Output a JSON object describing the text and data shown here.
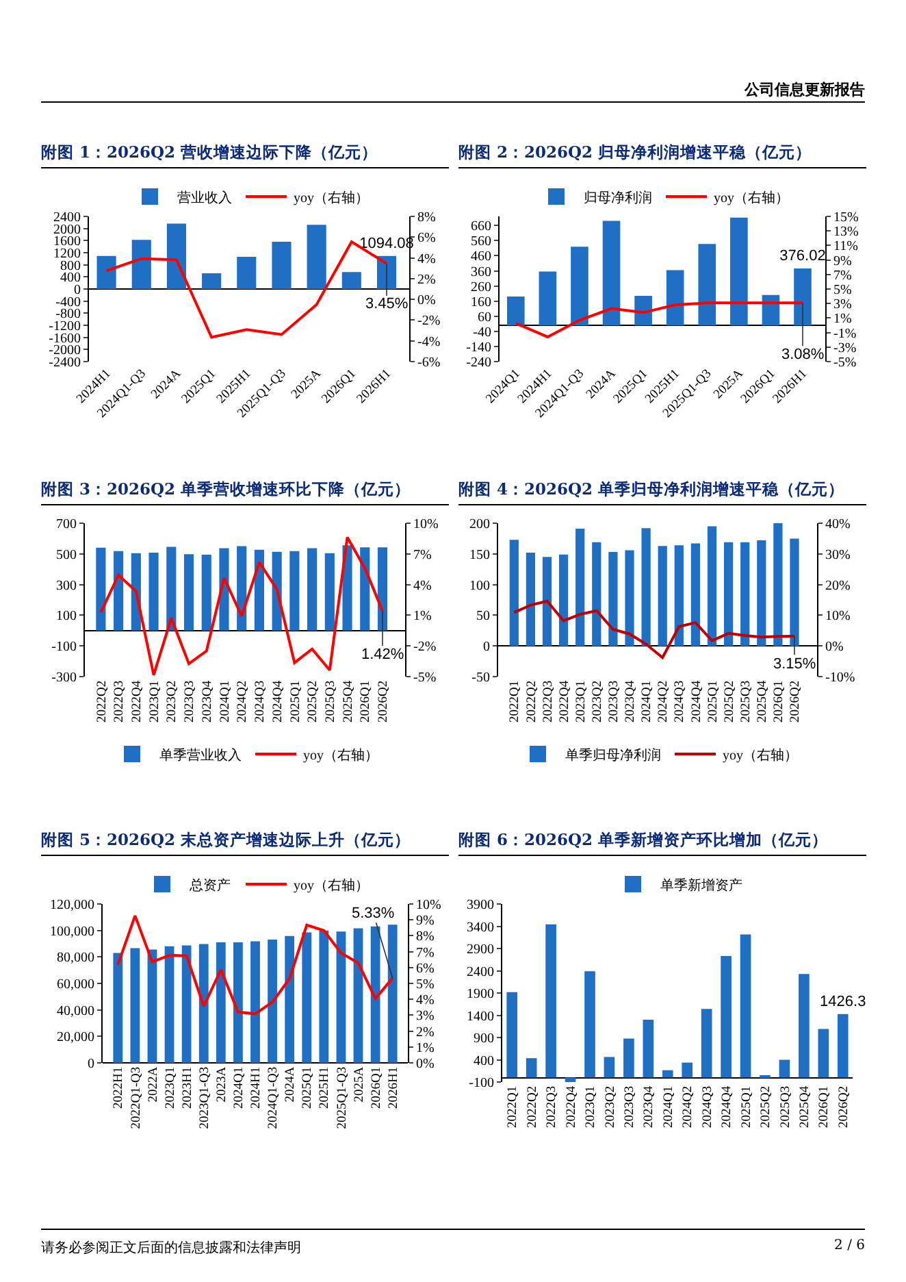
{
  "chart_data": [
    {
      "type": "bar",
      "title": "附图 1：2026Q2 营收增速边际下降（亿元）",
      "annotations": [
        "公司信息更新报告"
      ],
      "categories": [
        "2024H1",
        "2024Q1-Q3",
        "2024A",
        "2025Q1",
        "2025H1",
        "2025Q1-Q3",
        "2025A",
        "2026Q1",
        "2026H1"
      ],
      "series": [
        {
          "name": "营业收入",
          "color": "#1f6fc5",
          "values": [
            1090,
            1627,
            2160,
            520,
            1067,
            1560,
            2120,
            560,
            1094.08
          ],
          "value_labels": [
            null,
            null,
            null,
            null,
            null,
            null,
            null,
            null,
            "1094.08"
          ]
        },
        {
          "name": "yoy（右轴）",
          "type": "line",
          "axis": "y2",
          "color": "#ff0000",
          "values": [
            2.76,
            3.93,
            3.81,
            -3.66,
            -2.92,
            -3.39,
            -0.5,
            5.56,
            3.45
          ],
          "value_labels": [
            null,
            null,
            null,
            null,
            null,
            null,
            null,
            null,
            "3.45%"
          ]
        }
      ],
      "ylim": [
        -2400,
        2400
      ],
      "yticks": [
        -2400,
        -2000,
        -1600,
        -1200,
        -800,
        -400,
        0,
        400,
        800,
        1200,
        1600,
        2000,
        2400
      ],
      "y2lim": [
        -6,
        8
      ],
      "y2ticks": [
        {
          "value": -6,
          "label": "-6%"
        },
        {
          "value": -4,
          "label": "-4%"
        },
        {
          "value": -2,
          "label": "-2%"
        },
        {
          "value": 0,
          "label": "0%"
        },
        {
          "value": 2,
          "label": "2%"
        },
        {
          "value": 4,
          "label": "4%"
        },
        {
          "value": 6,
          "label": "6%"
        },
        {
          "value": 8,
          "label": "8%"
        }
      ],
      "legend": "top"
    },
    {
      "type": "bar",
      "title": "附图 2：2026Q2 归母净利润增速平稳（亿元）",
      "categories": [
        "2024Q1",
        "2024H1",
        "2024Q1-Q3",
        "2024A",
        "2025Q1",
        "2025H1",
        "2025Q1-Q3",
        "2025A",
        "2026Q1",
        "2026H1"
      ],
      "series": [
        {
          "name": "归母净利润",
          "color": "#1f6fc5",
          "values": [
            190,
            356,
            520,
            691,
            195,
            364,
            538,
            712,
            200,
            376.02
          ],
          "value_labels": [
            null,
            null,
            null,
            null,
            null,
            null,
            null,
            null,
            null,
            "376.02"
          ]
        },
        {
          "name": "yoy（右轴）",
          "type": "line",
          "axis": "y2",
          "color": "#ff0000",
          "values": [
            0.27,
            -1.6,
            0.7,
            2.3,
            1.76,
            2.8,
            3.08,
            3.08,
            3.1,
            3.08
          ],
          "value_labels": [
            null,
            null,
            null,
            null,
            null,
            null,
            null,
            null,
            null,
            "3.08%"
          ]
        }
      ],
      "ylim": [
        -240,
        720
      ],
      "yticks": [
        -240,
        -140,
        -40,
        60,
        160,
        260,
        360,
        460,
        560,
        660
      ],
      "y2lim": [
        -5,
        15
      ],
      "y2ticks": [
        {
          "value": -5,
          "label": "-5%"
        },
        {
          "value": -3,
          "label": "-3%"
        },
        {
          "value": -1,
          "label": "-1%"
        },
        {
          "value": 1,
          "label": "1%"
        },
        {
          "value": 3,
          "label": "3%"
        },
        {
          "value": 5,
          "label": "5%"
        },
        {
          "value": 7,
          "label": "7%"
        },
        {
          "value": 9,
          "label": "9%"
        },
        {
          "value": 11,
          "label": "11%"
        },
        {
          "value": 13,
          "label": "13%"
        },
        {
          "value": 15,
          "label": "15%"
        }
      ],
      "legend": "top"
    },
    {
      "type": "bar",
      "title": "附图 3：2026Q2 单季营收增速环比下降（亿元）",
      "categories": [
        "2022Q2",
        "2022Q3",
        "2022Q4",
        "2023Q1",
        "2023Q2",
        "2023Q3",
        "2023Q4",
        "2024Q1",
        "2024Q2",
        "2024Q3",
        "2024Q4",
        "2025Q1",
        "2025Q2",
        "2025Q3",
        "2025Q4",
        "2026Q1",
        "2026Q2"
      ],
      "series": [
        {
          "name": "单季营业收入",
          "color": "#1f6fc5",
          "values": [
            540,
            518,
            505,
            508,
            546,
            498,
            495,
            537,
            550,
            527,
            514,
            518,
            537,
            505,
            556,
            543,
            543
          ]
        },
        {
          "name": "yoy（右轴）",
          "type": "line",
          "axis": "y2",
          "color": "#ff0000",
          "values": [
            1.29,
            4.93,
            3.35,
            -4.84,
            0.72,
            -3.74,
            -2.49,
            4.65,
            0.91,
            6.18,
            3.55,
            -3.64,
            -2.3,
            -4.36,
            8.62,
            5.6,
            1.42
          ],
          "value_labels": [
            null,
            null,
            null,
            null,
            null,
            null,
            null,
            null,
            null,
            null,
            null,
            null,
            null,
            null,
            null,
            null,
            "1.42%"
          ]
        }
      ],
      "ylim": [
        -300,
        700
      ],
      "yticks": [
        -300,
        -100,
        100,
        300,
        500,
        700
      ],
      "y2lim": [
        -5,
        10
      ],
      "y2ticks": [
        {
          "value": -5,
          "label": "-5%"
        },
        {
          "value": -2,
          "label": "-2%"
        },
        {
          "value": 1,
          "label": "1%"
        },
        {
          "value": 4,
          "label": "4%"
        },
        {
          "value": 7,
          "label": "7%"
        },
        {
          "value": 10,
          "label": "10%"
        }
      ],
      "legend": "bottom"
    },
    {
      "type": "bar",
      "title": "附图 4：2026Q2 单季归母净利润增速平稳（亿元）",
      "categories": [
        "2022Q1",
        "2022Q2",
        "2022Q3",
        "2022Q4",
        "2023Q1",
        "2023Q2",
        "2023Q3",
        "2023Q4",
        "2024Q1",
        "2024Q2",
        "2024Q3",
        "2024Q4",
        "2025Q1",
        "2025Q2",
        "2025Q3",
        "2025Q4",
        "2026Q1",
        "2026Q2"
      ],
      "series": [
        {
          "name": "单季归母净利润",
          "color": "#1f6fc5",
          "values": [
            173,
            152,
            145,
            149,
            191,
            169,
            153,
            156,
            192,
            163,
            164,
            167,
            195,
            169,
            169,
            172,
            200,
            175
          ]
        },
        {
          "name": "yoy（右轴）",
          "type": "line",
          "axis": "y2",
          "color": "#c00000",
          "values": [
            10.9,
            13.3,
            14.6,
            8.2,
            10.3,
            11.5,
            5.4,
            3.9,
            0.6,
            -3.8,
            6.3,
            7.6,
            1.7,
            4.1,
            3.4,
            2.9,
            3.1,
            3.15
          ],
          "value_labels": [
            null,
            null,
            null,
            null,
            null,
            null,
            null,
            null,
            null,
            null,
            null,
            null,
            null,
            null,
            null,
            null,
            null,
            "3.15%"
          ]
        }
      ],
      "ylim": [
        -50,
        200
      ],
      "yticks": [
        -50,
        0,
        50,
        100,
        150,
        200
      ],
      "y2lim": [
        -10,
        40
      ],
      "y2ticks": [
        {
          "value": -10,
          "label": "-10%"
        },
        {
          "value": 0,
          "label": "0%"
        },
        {
          "value": 10,
          "label": "10%"
        },
        {
          "value": 20,
          "label": "20%"
        },
        {
          "value": 30,
          "label": "30%"
        },
        {
          "value": 40,
          "label": "40%"
        }
      ],
      "legend": "bottom"
    },
    {
      "type": "bar",
      "title": "附图 5：2026Q2 末总资产增速边际上升（亿元）",
      "categories": [
        "2022H1",
        "2022Q1-Q3",
        "2022A",
        "2023Q1",
        "2023H1",
        "2023Q1-Q3",
        "2023A",
        "2024Q1",
        "2024H1",
        "2024Q1-Q3",
        "2024A",
        "2025Q1",
        "2025H1",
        "2025Q1-Q3",
        "2025A",
        "2026Q1",
        "2026H1"
      ],
      "series": [
        {
          "name": "总资产",
          "color": "#1f6fc5",
          "values": [
            83000,
            86700,
            85650,
            88030,
            88700,
            89700,
            91100,
            91100,
            91800,
            93100,
            95800,
            98600,
            99900,
            99200,
            101600,
            103000,
            104300
          ]
        },
        {
          "name": "yoy（右轴）",
          "type": "line",
          "axis": "y2",
          "color": "#ff0000",
          "values": [
            6.18,
            9.26,
            6.35,
            6.77,
            6.74,
            3.57,
            5.86,
            3.2,
            3.09,
            3.82,
            5.3,
            8.67,
            8.33,
            6.91,
            6.29,
            4.05,
            5.33
          ],
          "value_labels": [
            null,
            null,
            null,
            null,
            null,
            null,
            null,
            null,
            null,
            null,
            null,
            null,
            null,
            null,
            null,
            null,
            "5.33%"
          ]
        }
      ],
      "ylim": [
        0,
        120000
      ],
      "yticks": [
        0,
        {
          "value": 20000,
          "label": "20,000"
        },
        {
          "value": 40000,
          "label": "40,000"
        },
        {
          "value": 60000,
          "label": "60,000"
        },
        {
          "value": 80000,
          "label": "80,000"
        },
        {
          "value": 100000,
          "label": "100,000"
        },
        {
          "value": 120000,
          "label": "120,000"
        }
      ],
      "y2lim": [
        0,
        10
      ],
      "y2ticks": [
        {
          "value": 0,
          "label": "0%"
        },
        {
          "value": 1,
          "label": "1%"
        },
        {
          "value": 2,
          "label": "2%"
        },
        {
          "value": 3,
          "label": "3%"
        },
        {
          "value": 4,
          "label": "4%"
        },
        {
          "value": 5,
          "label": "5%"
        },
        {
          "value": 6,
          "label": "6%"
        },
        {
          "value": 7,
          "label": "7%"
        },
        {
          "value": 8,
          "label": "8%"
        },
        {
          "value": 9,
          "label": "9%"
        },
        {
          "value": 10,
          "label": "10%"
        }
      ],
      "legend": "top"
    },
    {
      "type": "bar",
      "title": "附图 6：2026Q2 单季新增资产环比增加（亿元）",
      "annotations": [
        "请务必参阅正文后面的信息披露和法律声明",
        "2 / 6"
      ],
      "categories": [
        "2022Q1",
        "2022Q2",
        "2022Q3",
        "2022Q4",
        "2023Q1",
        "2023Q2",
        "2023Q3",
        "2023Q4",
        "2024Q1",
        "2024Q2",
        "2024Q3",
        "2024Q4",
        "2025Q1",
        "2025Q2",
        "2025Q3",
        "2025Q4",
        "2026Q1",
        "2026Q2"
      ],
      "series": [
        {
          "name": "单季新增资产",
          "color": "#1f6fc5",
          "values": [
            1921,
            436,
            3442,
            -100,
            2389,
            463,
            877,
            1300,
            166,
            337,
            1543,
            2731,
            3217,
            31,
            400,
            2326,
            1093,
            1426.3
          ],
          "value_labels": [
            null,
            null,
            null,
            null,
            null,
            null,
            null,
            null,
            null,
            null,
            null,
            null,
            null,
            null,
            null,
            null,
            null,
            "1426.3"
          ]
        }
      ],
      "ylim": [
        -100,
        3900
      ],
      "yticks": [
        -100,
        400,
        900,
        1400,
        1900,
        2400,
        2900,
        3400,
        3900
      ],
      "legend": "top"
    }
  ]
}
